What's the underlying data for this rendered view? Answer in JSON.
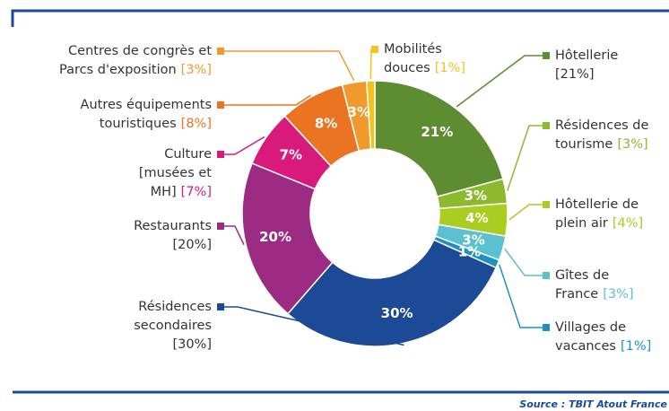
{
  "chart_data": {
    "type": "donut",
    "categories": [
      [
        "Hôtellerie"
      ],
      [
        "Résidences de",
        "tourisme"
      ],
      [
        "Hôtellerie de",
        "plein air"
      ],
      [
        "Gîtes de",
        "France"
      ],
      [
        "Villages de",
        "vacances"
      ],
      [
        "Résidences",
        "secondaires"
      ],
      [
        "Restaurants"
      ],
      [
        "Culture",
        "[musées et",
        "MH]"
      ],
      [
        "Autres équipements",
        "touristiques"
      ],
      [
        "Centres de congrès et",
        "Parcs d'exposition"
      ],
      [
        "Mobilités",
        "douces"
      ]
    ],
    "values": [
      21,
      3,
      4,
      3,
      1,
      30,
      20,
      7,
      8,
      3,
      1
    ],
    "value_labels": [
      "21%",
      "3%",
      "4%",
      "3%",
      "1%",
      "30%",
      "20%",
      "7%",
      "8%",
      "3%",
      null
    ],
    "legend_labels": [
      "[21%]",
      "[3%]",
      "[4%]",
      "[3%]",
      "[1%]",
      "[30%]",
      "[20%]",
      "[7%]",
      "[8%]",
      "[3%]",
      "[1%]"
    ],
    "colors": [
      "#5e8c31",
      "#8db92e",
      "#a9cd20",
      "#5bc0cf",
      "#1e90c3",
      "#1c4a97",
      "#9c2b83",
      "#d81b7a",
      "#ea7421",
      "#f09a2e",
      "#f5c21a"
    ],
    "source": "Source : TBIT Atout France"
  }
}
